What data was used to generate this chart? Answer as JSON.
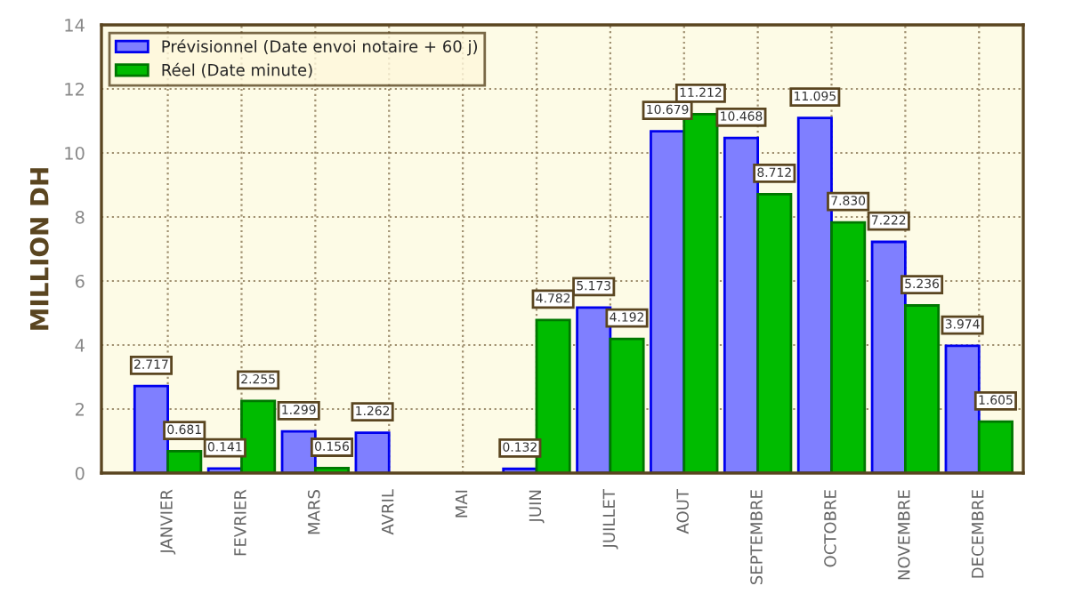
{
  "chart_data": {
    "type": "bar",
    "ylabel": "MILLION DH",
    "categories": [
      "JANVIER",
      "FEVRIER",
      "MARS",
      "AVRIL",
      "MAI",
      "JUIN",
      "JUILLET",
      "AOUT",
      "SEPTEMBRE",
      "OCTOBRE",
      "NOVEMBRE",
      "DECEMBRE"
    ],
    "series": [
      {
        "name": "Prévisionnel (Date envoi notaire + 60 j)",
        "color": "#7f7fff",
        "values": [
          2.717,
          0.141,
          1.299,
          1.262,
          null,
          0.132,
          5.173,
          10.679,
          10.468,
          11.095,
          7.222,
          3.974
        ],
        "value_labels": [
          "2.717",
          "0.141",
          "1.299",
          "1.262",
          null,
          "0.132",
          "5.173",
          "10.679",
          "10.468",
          "11.095",
          "7.222",
          "3.974"
        ]
      },
      {
        "name": "Réel (Date minute)",
        "color": "#00bb00",
        "values": [
          0.681,
          2.255,
          0.156,
          null,
          null,
          4.782,
          4.192,
          11.212,
          8.712,
          7.83,
          5.236,
          1.605
        ],
        "value_labels": [
          "0.681",
          "2.255",
          "0.156",
          null,
          null,
          "4.782",
          "4.192",
          "11.212",
          "8.712",
          "7.830",
          "5.236",
          "1.605"
        ]
      }
    ],
    "ylim": [
      0,
      14
    ],
    "yticks": [
      0,
      2,
      4,
      6,
      8,
      10,
      12,
      14
    ],
    "grid": true,
    "legend": "top left"
  }
}
